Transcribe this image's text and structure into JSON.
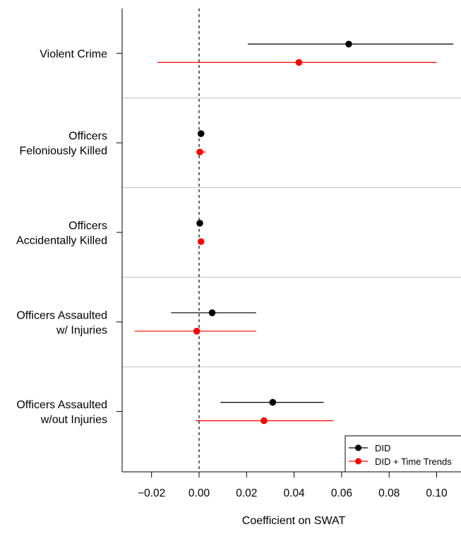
{
  "chart_data": {
    "type": "dot-and-whisker",
    "title": "",
    "xlabel": "Coefficient on SWAT",
    "ylabel": "",
    "xlim": [
      -0.032,
      0.11
    ],
    "x_ticks": [
      -0.02,
      0.0,
      0.02,
      0.04,
      0.06,
      0.08,
      0.1
    ],
    "x_tick_labels": [
      "−0.02",
      "0.00",
      "0.02",
      "0.04",
      "0.06",
      "0.08",
      "0.10"
    ],
    "reference_line": 0,
    "grid": "horizontal separators between outcomes",
    "legend_position": "bottom-right",
    "categories": [
      [
        "Violent Crime"
      ],
      [
        "Officers",
        "Feloniously Killed"
      ],
      [
        "Officers",
        "Accidentally Killed"
      ],
      [
        "Officers Assaulted",
        "w/ Injuries"
      ],
      [
        "Officers Assaulted",
        "w/out Injuries"
      ]
    ],
    "series": [
      {
        "name": "DID",
        "color": "#000000",
        "estimates": [
          0.063,
          0.0008,
          0.0003,
          0.0055,
          0.031
        ],
        "ci_low": [
          0.0205,
          0.0002,
          0.0002,
          -0.0118,
          0.009
        ],
        "ci_high": [
          0.107,
          0.0022,
          0.0008,
          0.024,
          0.0525
        ]
      },
      {
        "name": "DID + Time Trends",
        "color": "#ff0000",
        "estimates": [
          0.042,
          0.0003,
          0.0008,
          -0.001,
          0.0273
        ],
        "ci_low": [
          -0.0175,
          -0.0012,
          0.0004,
          -0.0272,
          -0.0015
        ],
        "ci_high": [
          0.1,
          0.0028,
          0.0015,
          0.024,
          0.0565
        ]
      }
    ]
  }
}
